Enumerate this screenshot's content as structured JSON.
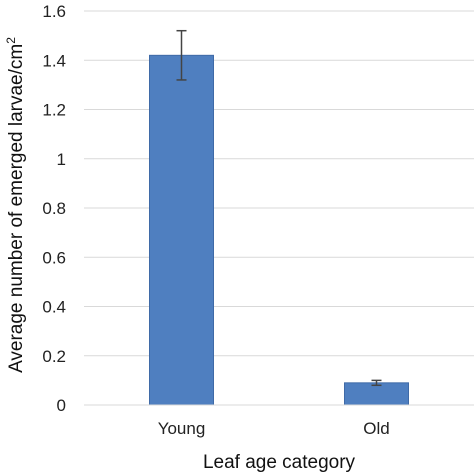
{
  "chart_data": {
    "type": "bar",
    "categories": [
      "Young",
      "Old"
    ],
    "values": [
      1.42,
      0.09
    ],
    "errors": [
      0.1,
      0.01
    ],
    "title": "",
    "xlabel": "Leaf age category",
    "ylabel": "Average number of emerged larvae/cm",
    "ylabel_superscript": "2",
    "ylim": [
      0,
      1.6
    ],
    "yticks": [
      0,
      0.2,
      0.4,
      0.6,
      0.8,
      1,
      1.2,
      1.4,
      1.6
    ],
    "ytick_labels": [
      "0",
      "0.2",
      "0.4",
      "0.6",
      "0.8",
      "1",
      "1.2",
      "1.4",
      "1.6"
    ],
    "grid": true,
    "legend": "none",
    "colors": {
      "bar": "#4f7fc0",
      "bar_edge": "#3f6aa7",
      "grid": "#d9d9d9",
      "error_bar": "#444444"
    }
  }
}
